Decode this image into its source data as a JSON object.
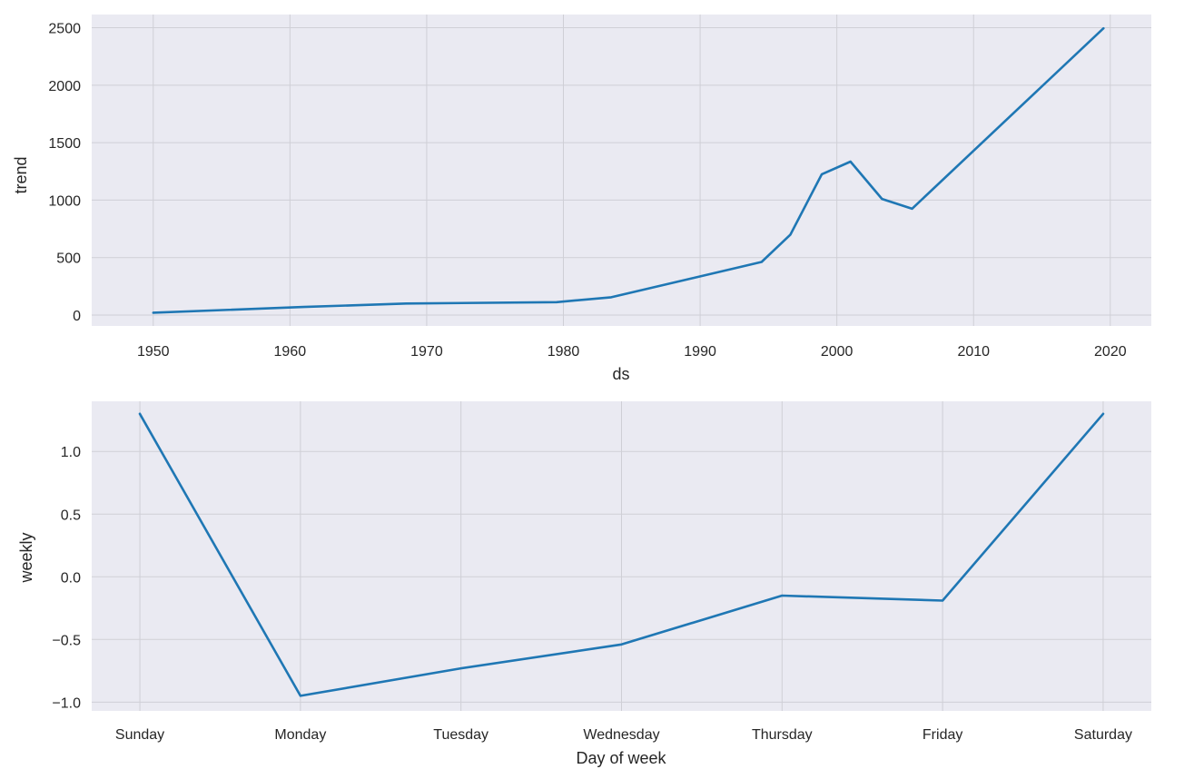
{
  "chart_data": [
    {
      "type": "line",
      "xlabel": "ds",
      "ylabel": "trend",
      "xlim": [
        1945.5,
        2023
      ],
      "ylim": [
        -95,
        2615
      ],
      "xticks": [
        1950,
        1960,
        1970,
        1980,
        1990,
        2000,
        2010,
        2020
      ],
      "xtick_labels": [
        "1950",
        "1960",
        "1970",
        "1980",
        "1990",
        "2000",
        "2010",
        "2020"
      ],
      "yticks": [
        0,
        500,
        1000,
        1500,
        2000,
        2500
      ],
      "ytick_labels": [
        "0",
        "500",
        "1000",
        "1500",
        "2000",
        "2500"
      ],
      "grid": true,
      "series": [
        {
          "color": "#1f77b4",
          "x": [
            1950.0,
            1961.0,
            1968.5,
            1979.5,
            1983.5,
            1994.5,
            1996.6,
            1998.9,
            2001.0,
            2003.3,
            2005.5,
            2019.5
          ],
          "y": [
            20,
            70,
            100,
            112,
            155,
            462,
            700,
            1225,
            1335,
            1010,
            925,
            2495
          ]
        }
      ]
    },
    {
      "type": "line",
      "xlabel": "Day of week",
      "ylabel": "weekly",
      "categories": [
        "Sunday",
        "Monday",
        "Tuesday",
        "Wednesday",
        "Thursday",
        "Friday",
        "Saturday"
      ],
      "ylim": [
        -1.07,
        1.4
      ],
      "yticks": [
        -1.0,
        -0.5,
        0.0,
        0.5,
        1.0
      ],
      "ytick_labels": [
        "−1.0",
        "−0.5",
        "0.0",
        "0.5",
        "1.0"
      ],
      "grid": true,
      "series": [
        {
          "color": "#1f77b4",
          "values": [
            1.3,
            -0.95,
            -0.73,
            -0.54,
            -0.15,
            -0.19,
            1.3
          ]
        }
      ]
    }
  ]
}
